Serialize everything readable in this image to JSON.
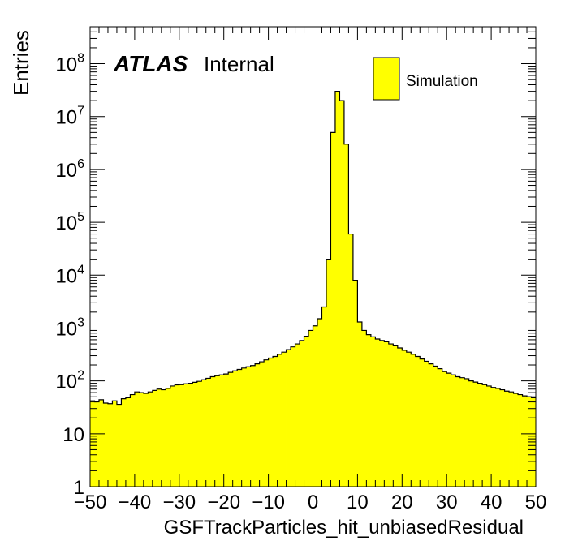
{
  "chart_data": {
    "type": "bar",
    "subtype": "step-histogram",
    "experiment": "ATLAS",
    "status": "Internal",
    "xlabel": "GSFTrackParticles_hit_unbiasedResidual",
    "ylabel": "Entries",
    "xlim": [
      -50,
      50
    ],
    "ylim": [
      1,
      500000000
    ],
    "yscale": "log",
    "x_ticks": [
      "−50",
      "−40",
      "−30",
      "−20",
      "−10",
      "0",
      "10",
      "20",
      "30",
      "40",
      "50"
    ],
    "y_ticks": [
      {
        "base": "1",
        "exp": ""
      },
      {
        "base": "10",
        "exp": ""
      },
      {
        "base": "10",
        "exp": "2"
      },
      {
        "base": "10",
        "exp": "3"
      },
      {
        "base": "10",
        "exp": "4"
      },
      {
        "base": "10",
        "exp": "5"
      },
      {
        "base": "10",
        "exp": "6"
      },
      {
        "base": "10",
        "exp": "7"
      },
      {
        "base": "10",
        "exp": "8"
      }
    ],
    "legend_position": "top-right",
    "fill_color": "#ffff00",
    "line_color": "#000000",
    "series": [
      {
        "name": "Simulation",
        "bin_width": 1,
        "x_start": -50,
        "values": [
          42,
          40,
          44,
          38,
          37,
          42,
          36,
          46,
          48,
          55,
          62,
          60,
          58,
          62,
          66,
          70,
          68,
          72,
          80,
          84,
          85,
          88,
          90,
          94,
          98,
          105,
          112,
          120,
          125,
          130,
          135,
          145,
          155,
          165,
          175,
          185,
          195,
          210,
          230,
          250,
          270,
          290,
          320,
          350,
          390,
          440,
          500,
          580,
          700,
          900,
          1100,
          1500,
          2500,
          20000,
          5000000,
          30000000,
          20000000,
          3000000,
          60000,
          8000,
          1300,
          900,
          750,
          680,
          620,
          580,
          550,
          500,
          460,
          420,
          380,
          350,
          320,
          290,
          260,
          235,
          210,
          190,
          170,
          150,
          140,
          130,
          120,
          115,
          110,
          100,
          95,
          90,
          85,
          80,
          75,
          72,
          68,
          64,
          62,
          58,
          55,
          52,
          50,
          48
        ]
      }
    ]
  }
}
